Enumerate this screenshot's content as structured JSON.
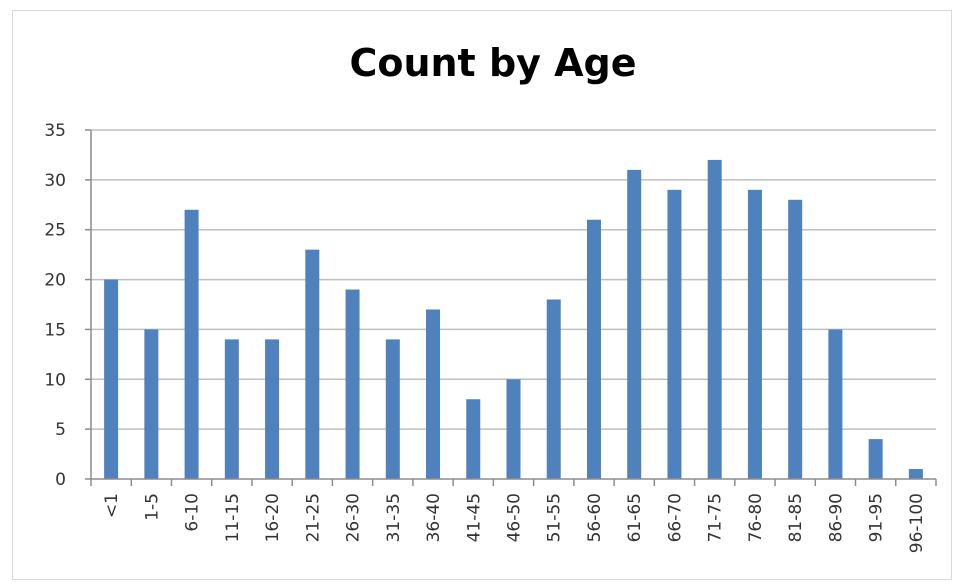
{
  "chart_data": {
    "type": "bar",
    "title": "Count by Age",
    "xlabel": "",
    "ylabel": "",
    "categories": [
      "<1",
      "1-5",
      "6-10",
      "11-15",
      "16-20",
      "21-25",
      "26-30",
      "31-35",
      "36-40",
      "41-45",
      "46-50",
      "51-55",
      "56-60",
      "61-65",
      "66-70",
      "71-75",
      "76-80",
      "81-85",
      "86-90",
      "91-95",
      "96-100"
    ],
    "values": [
      20,
      15,
      27,
      14,
      14,
      23,
      19,
      14,
      17,
      8,
      10,
      18,
      26,
      31,
      29,
      32,
      29,
      28,
      15,
      4,
      1
    ],
    "ylim": [
      0,
      35
    ],
    "yticks": [
      0,
      5,
      10,
      15,
      20,
      25,
      30,
      35
    ],
    "grid": true,
    "legend": "none",
    "bar_color": "#4f81bd",
    "grid_color": "#bfbfbf",
    "axis_color": "#8c8c8c"
  }
}
